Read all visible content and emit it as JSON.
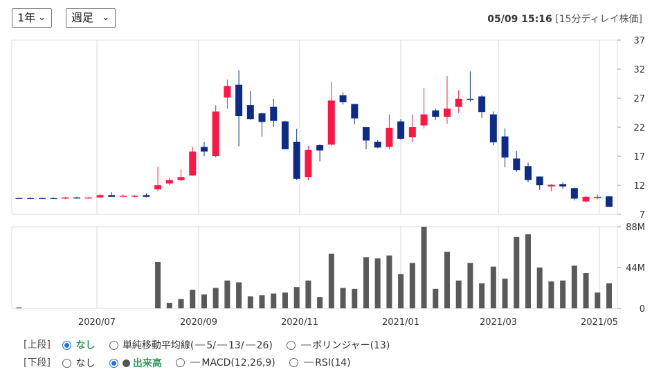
{
  "controls_top": {
    "period_select": "1年",
    "interval_select": "週足"
  },
  "timestamp": {
    "datetime": "05/09 15:16",
    "note": "[15分ディレイ株価]"
  },
  "chart_data": {
    "type": "candlestick",
    "x_labels": [
      "2020/07",
      "2020/09",
      "2020/11",
      "2021/01",
      "2021/03",
      "2021/05"
    ],
    "price_ticks": [
      "37",
      "32",
      "27",
      "22",
      "17",
      "12",
      "7"
    ],
    "price_ylim": [
      7,
      37
    ],
    "volume_ticks": [
      "88M",
      "44M",
      "0"
    ],
    "volume_ylim": [
      0,
      88
    ],
    "up_color": "#ff1744",
    "down_color": "#0d2c8a",
    "volume_color": "#595959",
    "candles": [
      {
        "o": 9.8,
        "h": 9.9,
        "l": 9.7,
        "c": 9.8,
        "v": 1
      },
      {
        "o": 9.8,
        "h": 9.9,
        "l": 9.7,
        "c": 9.8,
        "v": 0
      },
      {
        "o": 9.8,
        "h": 9.9,
        "l": 9.7,
        "c": 9.8,
        "v": 0
      },
      {
        "o": 9.8,
        "h": 9.9,
        "l": 9.7,
        "c": 9.8,
        "v": 0
      },
      {
        "o": 9.7,
        "h": 10.0,
        "l": 9.6,
        "c": 9.9,
        "v": 0
      },
      {
        "o": 9.9,
        "h": 10.0,
        "l": 9.7,
        "c": 9.8,
        "v": 0
      },
      {
        "o": 9.8,
        "h": 10.0,
        "l": 9.7,
        "c": 9.9,
        "v": 0
      },
      {
        "o": 9.9,
        "h": 10.5,
        "l": 9.8,
        "c": 10.3,
        "v": 0
      },
      {
        "o": 10.3,
        "h": 10.8,
        "l": 10.0,
        "c": 10.0,
        "v": 0
      },
      {
        "o": 10.1,
        "h": 10.4,
        "l": 9.9,
        "c": 10.2,
        "v": 0
      },
      {
        "o": 10.1,
        "h": 10.3,
        "l": 9.9,
        "c": 10.2,
        "v": 0
      },
      {
        "o": 10.3,
        "h": 10.6,
        "l": 9.9,
        "c": 10.0,
        "v": 0
      },
      {
        "o": 11.3,
        "h": 15.2,
        "l": 11.0,
        "c": 12.0,
        "v": 50
      },
      {
        "o": 12.3,
        "h": 13.3,
        "l": 12.0,
        "c": 12.9,
        "v": 6
      },
      {
        "o": 12.9,
        "h": 14.8,
        "l": 12.7,
        "c": 13.4,
        "v": 10
      },
      {
        "o": 13.7,
        "h": 18.6,
        "l": 13.6,
        "c": 17.8,
        "v": 20
      },
      {
        "o": 18.6,
        "h": 19.5,
        "l": 17.0,
        "c": 17.8,
        "v": 15
      },
      {
        "o": 17.0,
        "h": 25.8,
        "l": 16.8,
        "c": 24.7,
        "v": 22
      },
      {
        "o": 27.1,
        "h": 30.2,
        "l": 25.2,
        "c": 29.1,
        "v": 30
      },
      {
        "o": 29.3,
        "h": 31.8,
        "l": 18.7,
        "c": 23.9,
        "v": 28
      },
      {
        "o": 25.8,
        "h": 28.2,
        "l": 23.3,
        "c": 23.4,
        "v": 13
      },
      {
        "o": 24.4,
        "h": 24.5,
        "l": 20.4,
        "c": 22.9,
        "v": 14
      },
      {
        "o": 25.5,
        "h": 26.9,
        "l": 22.0,
        "c": 23.1,
        "v": 16
      },
      {
        "o": 23.0,
        "h": 23.1,
        "l": 18.2,
        "c": 18.2,
        "v": 17
      },
      {
        "o": 19.5,
        "h": 21.7,
        "l": 12.9,
        "c": 13.1,
        "v": 23
      },
      {
        "o": 13.4,
        "h": 18.8,
        "l": 12.9,
        "c": 18.1,
        "v": 30
      },
      {
        "o": 18.9,
        "h": 19.1,
        "l": 16.1,
        "c": 18.0,
        "v": 12
      },
      {
        "o": 19.0,
        "h": 29.8,
        "l": 18.8,
        "c": 26.6,
        "v": 59
      },
      {
        "o": 27.5,
        "h": 28.0,
        "l": 25.9,
        "c": 26.3,
        "v": 22
      },
      {
        "o": 26.0,
        "h": 26.0,
        "l": 22.5,
        "c": 23.5,
        "v": 21
      },
      {
        "o": 22.0,
        "h": 22.0,
        "l": 18.2,
        "c": 19.7,
        "v": 55
      },
      {
        "o": 19.5,
        "h": 19.8,
        "l": 18.4,
        "c": 18.5,
        "v": 54
      },
      {
        "o": 18.6,
        "h": 24.2,
        "l": 18.2,
        "c": 21.9,
        "v": 57
      },
      {
        "o": 23.0,
        "h": 23.4,
        "l": 19.8,
        "c": 20.0,
        "v": 37
      },
      {
        "o": 20.3,
        "h": 24.2,
        "l": 19.4,
        "c": 22.0,
        "v": 49
      },
      {
        "o": 22.3,
        "h": 28.8,
        "l": 21.8,
        "c": 24.2,
        "v": 88
      },
      {
        "o": 24.9,
        "h": 25.2,
        "l": 23.3,
        "c": 23.8,
        "v": 21
      },
      {
        "o": 23.8,
        "h": 30.8,
        "l": 22.6,
        "c": 25.2,
        "v": 61
      },
      {
        "o": 25.5,
        "h": 28.4,
        "l": 24.5,
        "c": 26.9,
        "v": 30
      },
      {
        "o": 26.9,
        "h": 31.6,
        "l": 26.4,
        "c": 26.7,
        "v": 49
      },
      {
        "o": 27.3,
        "h": 27.5,
        "l": 23.6,
        "c": 24.6,
        "v": 27
      },
      {
        "o": 24.2,
        "h": 24.7,
        "l": 18.9,
        "c": 19.4,
        "v": 45
      },
      {
        "o": 20.4,
        "h": 21.8,
        "l": 15.1,
        "c": 16.8,
        "v": 32
      },
      {
        "o": 16.6,
        "h": 17.9,
        "l": 14.3,
        "c": 14.6,
        "v": 77
      },
      {
        "o": 15.3,
        "h": 15.9,
        "l": 12.5,
        "c": 12.9,
        "v": 80
      },
      {
        "o": 13.5,
        "h": 13.5,
        "l": 11.2,
        "c": 12.0,
        "v": 44
      },
      {
        "o": 11.8,
        "h": 12.2,
        "l": 11.0,
        "c": 12.1,
        "v": 29
      },
      {
        "o": 12.2,
        "h": 12.5,
        "l": 11.4,
        "c": 11.8,
        "v": 30
      },
      {
        "o": 11.5,
        "h": 11.6,
        "l": 9.4,
        "c": 9.7,
        "v": 46
      },
      {
        "o": 9.2,
        "h": 10.2,
        "l": 9.0,
        "c": 10.0,
        "v": 38
      },
      {
        "o": 9.8,
        "h": 10.4,
        "l": 9.6,
        "c": 10.0,
        "v": 17
      },
      {
        "o": 10.1,
        "h": 10.1,
        "l": 8.3,
        "c": 8.3,
        "v": 27
      }
    ]
  },
  "indicators": {
    "upper": {
      "group_label": "[上段]",
      "options": [
        {
          "label": "なし",
          "selected": true
        },
        {
          "label": "単純移動平均線(",
          "suffix_parts": [
            "5/",
            "13/",
            "26)"
          ],
          "selected": false
        },
        {
          "label": "ボリンジャー(13)",
          "selected": false
        }
      ]
    },
    "lower": {
      "group_label": "[下段]",
      "options": [
        {
          "label": "なし",
          "selected": false
        },
        {
          "label": "出来高",
          "selected": true
        },
        {
          "label": "MACD(12,26,9)",
          "selected": false
        },
        {
          "label": "RSI(14)",
          "selected": false
        }
      ]
    }
  }
}
